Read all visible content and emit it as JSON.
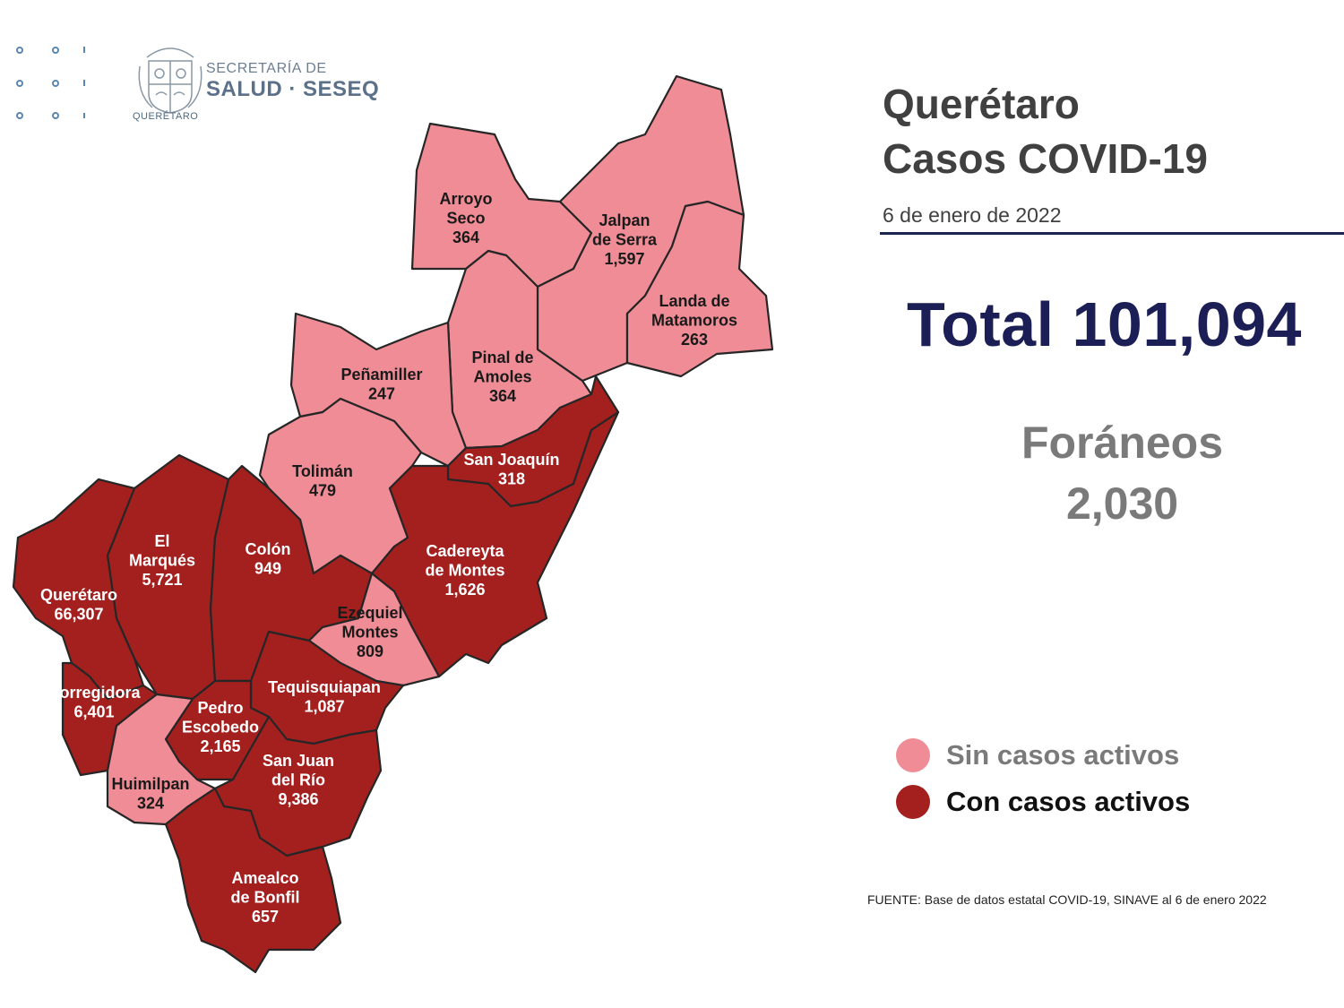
{
  "header": {
    "secretaria": "SECRETARÍA DE",
    "salud": "SALUD · SESEQ",
    "logo_caption": "QUERÉTARO"
  },
  "title": {
    "line1": "Querétaro",
    "line2": "Casos COVID-19"
  },
  "date": "6 de enero de 2022",
  "total": "Total 101,094",
  "foraneos": {
    "label": "Foráneos",
    "value": "2,030"
  },
  "legend": {
    "sin": {
      "label": "Sin casos activos",
      "color": "#f08c95"
    },
    "con": {
      "label": "Con casos activos",
      "color": "#a3201f"
    }
  },
  "source": "FUENTE: Base de datos estatal COVID-19, SINAVE al 6 de enero 2022",
  "municipalities": [
    {
      "id": "arroyo-seco",
      "name": [
        "Arroyo",
        "Seco"
      ],
      "cases": "364",
      "active": false
    },
    {
      "id": "jalpan",
      "name": [
        "Jalpan",
        "de Serra"
      ],
      "cases": "1,597",
      "active": false
    },
    {
      "id": "landa",
      "name": [
        "Landa de",
        "Matamoros"
      ],
      "cases": "263",
      "active": false
    },
    {
      "id": "pinal",
      "name": [
        "Pinal de",
        "Amoles"
      ],
      "cases": "364",
      "active": false
    },
    {
      "id": "penamiller",
      "name": [
        "Peñamiller"
      ],
      "cases": "247",
      "active": false
    },
    {
      "id": "toliman",
      "name": [
        "Tolimán"
      ],
      "cases": "479",
      "active": false
    },
    {
      "id": "san-joaquin",
      "name": [
        "San Joaquín"
      ],
      "cases": "318",
      "active": true
    },
    {
      "id": "cadereyta",
      "name": [
        "Cadereyta",
        "de Montes"
      ],
      "cases": "1,626",
      "active": true
    },
    {
      "id": "el-marques",
      "name": [
        "El",
        "Marqués"
      ],
      "cases": "5,721",
      "active": true
    },
    {
      "id": "colon",
      "name": [
        "Colón"
      ],
      "cases": "949",
      "active": true
    },
    {
      "id": "queretaro",
      "name": [
        "Querétaro"
      ],
      "cases": "66,307",
      "active": true
    },
    {
      "id": "ezequiel",
      "name": [
        "Ezequiel",
        "Montes"
      ],
      "cases": "809",
      "active": false
    },
    {
      "id": "corregidora",
      "name": [
        "Corregidora"
      ],
      "cases": "6,401",
      "active": true
    },
    {
      "id": "tequisquiapan",
      "name": [
        "Tequisquiapan"
      ],
      "cases": "1,087",
      "active": true
    },
    {
      "id": "pedro-escobedo",
      "name": [
        "Pedro",
        "Escobedo"
      ],
      "cases": "2,165",
      "active": true
    },
    {
      "id": "san-juan",
      "name": [
        "San Juan",
        "del Río"
      ],
      "cases": "9,386",
      "active": true
    },
    {
      "id": "huimilpan",
      "name": [
        "Huimilpan"
      ],
      "cases": "324",
      "active": false
    },
    {
      "id": "amealco",
      "name": [
        "Amealco",
        "de Bonfil"
      ],
      "cases": "657",
      "active": true
    }
  ]
}
